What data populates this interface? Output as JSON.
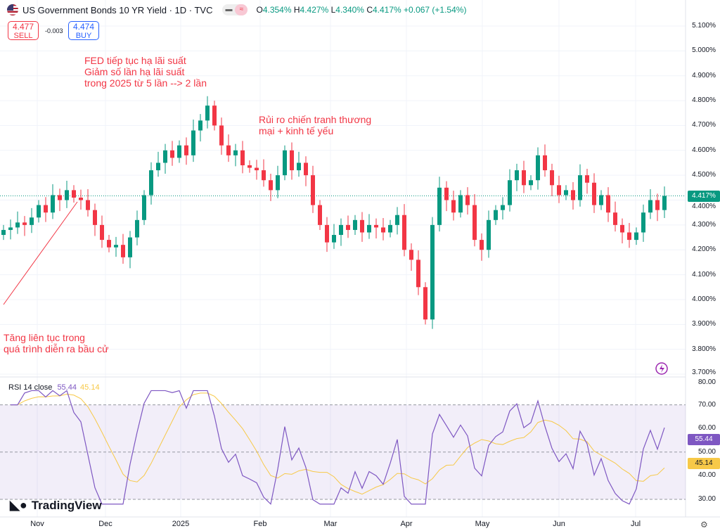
{
  "header": {
    "title": "US Government Bonds 10 YR Yield · 1D · TVC",
    "open_label": "O",
    "open": "4.354%",
    "high_label": "H",
    "high": "4.427%",
    "low_label": "L",
    "low": "4.340%",
    "close_label": "C",
    "close": "4.417%",
    "change": "+0.067 (+1.54%)"
  },
  "trade": {
    "sell_price": "4.477",
    "sell_label": "SELL",
    "spread": "-0.003",
    "buy_price": "4.474",
    "buy_label": "BUY"
  },
  "annotations": [
    "FED tiếp tục hạ lãi suất",
    "Giảm số lần hạ lãi suất",
    "trong 2025 từ 5 lần --> 2 lần",
    "Rủi ro chiến tranh thương",
    "mại + kinh tế yếu",
    "Tăng liên tục trong",
    "quá trình diễn ra bầu cử"
  ],
  "rsi": {
    "label": "RSI 14 close",
    "value": "55.44",
    "ma_value": "45.14"
  },
  "logo": "TradingView",
  "colors": {
    "up": "#089981",
    "down": "#f23645",
    "rsi": "#7e57c2",
    "rsi_ma": "#f7c948"
  },
  "chart_data": {
    "type": "candlestick",
    "price_axis": [
      "5.100%",
      "5.000%",
      "4.900%",
      "4.800%",
      "4.700%",
      "4.600%",
      "4.500%",
      "4.400%",
      "4.300%",
      "4.200%",
      "4.100%",
      "4.000%",
      "3.900%",
      "3.800%",
      "3.700%"
    ],
    "ylim": [
      3.7,
      5.1
    ],
    "last_price": "4.417%",
    "time_axis": [
      "Nov",
      "Dec",
      "2025",
      "Feb",
      "Mar",
      "Apr",
      "May",
      "Jun",
      "Jul"
    ],
    "closes": [
      4.28,
      4.29,
      4.31,
      4.3,
      4.33,
      4.38,
      4.35,
      4.42,
      4.4,
      4.44,
      4.41,
      4.4,
      4.36,
      4.3,
      4.24,
      4.21,
      4.22,
      4.17,
      4.25,
      4.32,
      4.42,
      4.52,
      4.55,
      4.6,
      4.57,
      4.62,
      4.58,
      4.68,
      4.72,
      4.78,
      4.7,
      4.62,
      4.58,
      4.6,
      4.54,
      4.53,
      4.52,
      4.48,
      4.44,
      4.5,
      4.6,
      4.52,
      4.55,
      4.5,
      4.38,
      4.3,
      4.23,
      4.26,
      4.3,
      4.28,
      4.32,
      4.27,
      4.3,
      4.29,
      4.27,
      4.3,
      4.34,
      4.2,
      4.16,
      4.05,
      3.92,
      4.3,
      4.45,
      4.4,
      4.35,
      4.42,
      4.38,
      4.24,
      4.2,
      4.32,
      4.36,
      4.38,
      4.48,
      4.52,
      4.46,
      4.48,
      4.58,
      4.52,
      4.46,
      4.42,
      4.44,
      4.4,
      4.5,
      4.47,
      4.38,
      4.42,
      4.35,
      4.3,
      4.27,
      4.24,
      4.27,
      4.35,
      4.4,
      4.36,
      4.417
    ],
    "rsi_axis": [
      "80.00",
      "70.00",
      "60.00",
      "50.00",
      "40.00",
      "30.00"
    ],
    "rsi_ylim": [
      30,
      80
    ],
    "rsi_bands": [
      70,
      50,
      30
    ]
  }
}
